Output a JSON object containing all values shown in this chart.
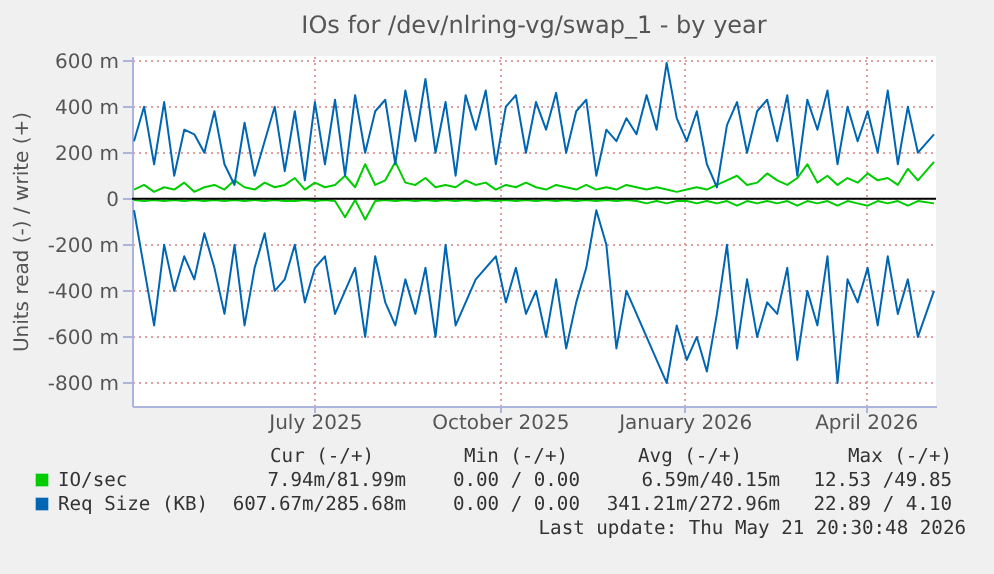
{
  "chart_data": {
    "type": "line",
    "title": "IOs for /dev/nlring-vg/swap_1 - by year",
    "ylabel": "Units read (-) / write (+)",
    "x": [
      "2025-04-17",
      "2025-04-22",
      "2025-04-27",
      "2025-05-02",
      "2025-05-07",
      "2025-05-12",
      "2025-05-17",
      "2025-05-22",
      "2025-05-27",
      "2025-06-01",
      "2025-06-06",
      "2025-06-11",
      "2025-06-16",
      "2025-06-21",
      "2025-06-26",
      "2025-07-01",
      "2025-07-06",
      "2025-07-11",
      "2025-07-16",
      "2025-07-21",
      "2025-07-26",
      "2025-07-31",
      "2025-08-05",
      "2025-08-10",
      "2025-08-15",
      "2025-08-20",
      "2025-08-25",
      "2025-08-30",
      "2025-09-04",
      "2025-09-09",
      "2025-09-14",
      "2025-09-19",
      "2025-09-24",
      "2025-09-29",
      "2025-10-04",
      "2025-10-09",
      "2025-10-14",
      "2025-10-19",
      "2025-10-24",
      "2025-10-29",
      "2025-11-03",
      "2025-11-08",
      "2025-11-13",
      "2025-11-18",
      "2025-11-23",
      "2025-11-28",
      "2025-12-03",
      "2025-12-08",
      "2025-12-13",
      "2025-12-18",
      "2025-12-23",
      "2025-12-28",
      "2026-01-02",
      "2026-01-07",
      "2026-01-12",
      "2026-01-17",
      "2026-01-22",
      "2026-01-27",
      "2026-02-01",
      "2026-02-06",
      "2026-02-11",
      "2026-02-16",
      "2026-02-21",
      "2026-02-26",
      "2026-03-03",
      "2026-03-08",
      "2026-03-13",
      "2026-03-18",
      "2026-03-23",
      "2026-03-28",
      "2026-04-02",
      "2026-04-07",
      "2026-04-12",
      "2026-04-17",
      "2026-04-22",
      "2026-04-27",
      "2026-05-02",
      "2026-05-07",
      "2026-05-12",
      "2026-05-20"
    ],
    "xlim": [
      "2025-04-16",
      "2026-05-21"
    ],
    "xticks": [
      {
        "value": "2025-07-16",
        "label": "July 2025"
      },
      {
        "value": "2025-10-16",
        "label": "October 2025"
      },
      {
        "value": "2026-01-16",
        "label": "January 2026"
      },
      {
        "value": "2026-04-16",
        "label": "April 2026"
      }
    ],
    "ylim": [
      -900,
      620
    ],
    "yticks": [
      {
        "value": 600,
        "label": "600 m"
      },
      {
        "value": 400,
        "label": "400 m"
      },
      {
        "value": 200,
        "label": "200 m"
      },
      {
        "value": 0,
        "label": "0"
      },
      {
        "value": -200,
        "label": "-200 m"
      },
      {
        "value": -400,
        "label": "-400 m"
      },
      {
        "value": -600,
        "label": "-600 m"
      },
      {
        "value": -800,
        "label": "-800 m"
      }
    ],
    "grid": true,
    "legend": "bottom",
    "series": [
      {
        "name": "IO/sec",
        "color": "#00cc00",
        "values": [
          40,
          60,
          30,
          50,
          40,
          70,
          30,
          50,
          60,
          40,
          80,
          50,
          40,
          70,
          50,
          60,
          90,
          40,
          70,
          50,
          60,
          100,
          50,
          150,
          60,
          80,
          160,
          70,
          60,
          90,
          50,
          60,
          50,
          80,
          60,
          70,
          40,
          60,
          50,
          70,
          50,
          40,
          60,
          50,
          40,
          60,
          40,
          50,
          40,
          60,
          50,
          40,
          50,
          40,
          30,
          40,
          50,
          40,
          60,
          80,
          100,
          60,
          70,
          110,
          80,
          60,
          90,
          150,
          70,
          100,
          60,
          90,
          70,
          110,
          80,
          90,
          60,
          130,
          80,
          160
        ]
      },
      {
        "color": "#00cc00",
        "values": [
          -5,
          -10,
          -5,
          -10,
          -5,
          -10,
          -5,
          -10,
          -5,
          -10,
          -5,
          -10,
          -5,
          -10,
          -5,
          -10,
          -10,
          -5,
          -10,
          -5,
          -10,
          -80,
          -5,
          -90,
          -10,
          -5,
          -10,
          -5,
          -10,
          -5,
          -10,
          -5,
          -10,
          -5,
          -10,
          -5,
          -10,
          -5,
          -10,
          -5,
          -10,
          -5,
          -10,
          -5,
          -10,
          -5,
          -10,
          -5,
          -10,
          -5,
          -10,
          -20,
          -10,
          -20,
          -10,
          -10,
          -20,
          -10,
          -20,
          -10,
          -30,
          -10,
          -20,
          -10,
          -20,
          -10,
          -30,
          -10,
          -20,
          -10,
          -30,
          -10,
          -20,
          -30,
          -10,
          -20,
          -10,
          -30,
          -10,
          -20
        ]
      },
      {
        "name": "Req Size (KB)",
        "color": "#0066b3",
        "values": [
          250,
          400,
          150,
          420,
          100,
          300,
          280,
          200,
          380,
          150,
          60,
          330,
          100,
          250,
          400,
          120,
          380,
          80,
          420,
          150,
          430,
          100,
          450,
          200,
          380,
          430,
          150,
          470,
          250,
          520,
          200,
          420,
          100,
          450,
          300,
          470,
          150,
          400,
          450,
          200,
          420,
          300,
          460,
          200,
          380,
          430,
          100,
          300,
          250,
          350,
          280,
          450,
          300,
          590,
          350,
          250,
          380,
          150,
          50,
          320,
          420,
          200,
          380,
          430,
          250,
          450,
          100,
          430,
          300,
          470,
          150,
          400,
          250,
          380,
          200,
          470,
          150,
          400,
          200,
          280
        ]
      },
      {
        "color": "#0066b3",
        "values": [
          -50,
          -300,
          -550,
          -200,
          -400,
          -250,
          -350,
          -150,
          -300,
          -500,
          -200,
          -550,
          -300,
          -150,
          -400,
          -350,
          -200,
          -450,
          -300,
          -250,
          -500,
          -400,
          -300,
          -600,
          -250,
          -450,
          -550,
          -350,
          -500,
          -300,
          -600,
          -200,
          -550,
          -450,
          -350,
          -300,
          -250,
          -450,
          -300,
          -500,
          -400,
          -600,
          -350,
          -650,
          -450,
          -300,
          -50,
          -200,
          -650,
          -400,
          -500,
          -600,
          -700,
          -800,
          -550,
          -700,
          -600,
          -750,
          -500,
          -200,
          -650,
          -350,
          -600,
          -450,
          -500,
          -300,
          -700,
          -400,
          -550,
          -250,
          -800,
          -350,
          -450,
          -300,
          -550,
          -250,
          -500,
          -350,
          -600,
          -400
        ]
      }
    ],
    "ref_lines": [
      {
        "axis": "y",
        "value": 0,
        "color": "#000000"
      }
    ],
    "annotations": [
      "Cur (-/+)",
      "Min (-/+)",
      "Avg (-/+)",
      "Max (-/+)",
      "7.94m/81.99m",
      "0.00 / 0.00",
      "6.59m/40.15m",
      "12.53 /49.85",
      "607.67m/285.68m",
      "0.00 / 0.00",
      "341.21m/272.96m",
      "22.89 / 4.10",
      "Last update: Thu May 21 20:30:48 2026"
    ]
  }
}
